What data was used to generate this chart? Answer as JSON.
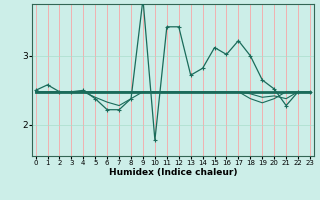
{
  "xlabel": "Humidex (Indice chaleur)",
  "ylabel": "",
  "background_color": "#cceee8",
  "grid_color": "#ff9999",
  "line_color": "#1a6b5a",
  "x_ticks": [
    0,
    1,
    2,
    3,
    4,
    5,
    6,
    7,
    8,
    9,
    10,
    11,
    12,
    13,
    14,
    15,
    16,
    17,
    18,
    19,
    20,
    21,
    22,
    23
  ],
  "y_ticks": [
    2,
    3
  ],
  "ylim": [
    1.55,
    3.75
  ],
  "xlim": [
    -0.3,
    23.3
  ],
  "series1_x": [
    0,
    1,
    2,
    3,
    4,
    5,
    6,
    7,
    8,
    9,
    10,
    11,
    12,
    13,
    14,
    15,
    16,
    17,
    18,
    19,
    20,
    21,
    22,
    23
  ],
  "series1_y": [
    2.5,
    2.58,
    2.48,
    2.48,
    2.5,
    2.38,
    2.22,
    2.22,
    2.38,
    3.82,
    1.78,
    3.42,
    3.42,
    2.72,
    2.82,
    3.12,
    3.02,
    3.22,
    3.0,
    2.65,
    2.52,
    2.28,
    2.48,
    2.48
  ],
  "series2_x": [
    0,
    23
  ],
  "series2_y": [
    2.48,
    2.48
  ],
  "series3_x": [
    0,
    1,
    2,
    3,
    4,
    5,
    6,
    7,
    8,
    9,
    10,
    11,
    12,
    13,
    14,
    15,
    16,
    17,
    18,
    19,
    20,
    21,
    22,
    23
  ],
  "series3_y": [
    2.48,
    2.48,
    2.48,
    2.48,
    2.48,
    2.4,
    2.33,
    2.28,
    2.38,
    2.48,
    2.48,
    2.48,
    2.48,
    2.48,
    2.48,
    2.48,
    2.48,
    2.48,
    2.45,
    2.4,
    2.42,
    2.38,
    2.48,
    2.48
  ],
  "series4_x": [
    0,
    1,
    2,
    3,
    4,
    5,
    6,
    7,
    8,
    9,
    10,
    11,
    12,
    13,
    14,
    15,
    16,
    17,
    18,
    19,
    20,
    21,
    22,
    23
  ],
  "series4_y": [
    2.48,
    2.48,
    2.48,
    2.48,
    2.48,
    2.48,
    2.48,
    2.48,
    2.48,
    2.48,
    2.48,
    2.48,
    2.48,
    2.48,
    2.48,
    2.48,
    2.48,
    2.48,
    2.38,
    2.32,
    2.38,
    2.48,
    2.48,
    2.48
  ]
}
